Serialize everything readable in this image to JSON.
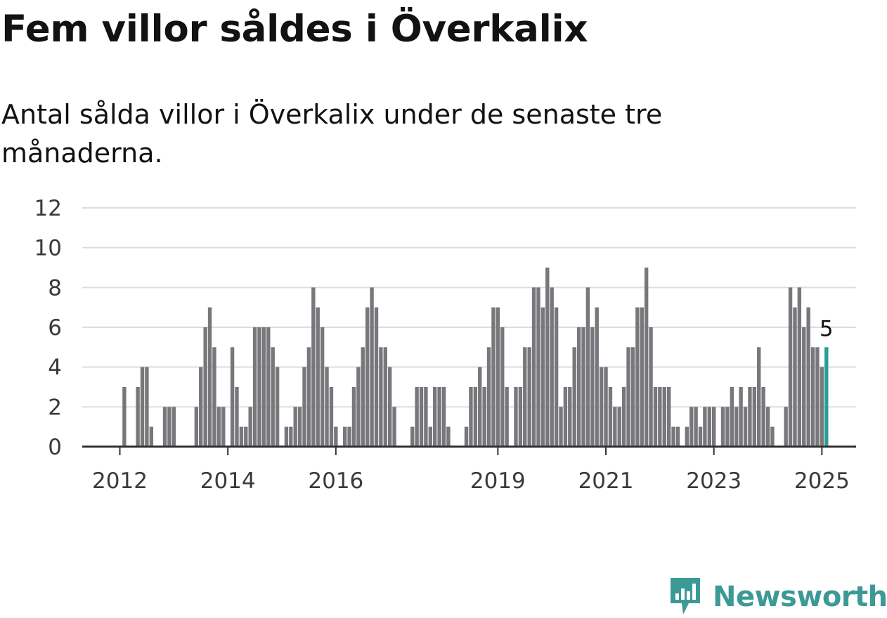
{
  "header": {
    "title": "Fem villor såldes i Överkalix",
    "subtitle": "Antal sålda villor i Överkalix under de senaste tre månaderna."
  },
  "chart_data": {
    "type": "bar",
    "title": "Fem villor såldes i Överkalix",
    "subtitle": "Antal sålda villor i Överkalix under de senaste tre månaderna.",
    "xlabel": "",
    "ylabel": "",
    "start": "2012-01",
    "ylim": [
      0,
      12
    ],
    "yticks": [
      0,
      2,
      4,
      6,
      8,
      10,
      12
    ],
    "xticks": [
      {
        "label": "2012",
        "month": "2012-01"
      },
      {
        "label": "2014",
        "month": "2014-01"
      },
      {
        "label": "2016",
        "month": "2016-01"
      },
      {
        "label": "2019",
        "month": "2019-01"
      },
      {
        "label": "2021",
        "month": "2021-01"
      },
      {
        "label": "2023",
        "month": "2023-01"
      },
      {
        "label": "2025",
        "month": "2025-01"
      }
    ],
    "grid": true,
    "bar_color": "#78787c",
    "highlight_color": "#2a9d96",
    "highlight_label": "5",
    "values": [
      0,
      3,
      0,
      0,
      3,
      4,
      4,
      1,
      0,
      0,
      2,
      2,
      2,
      0,
      0,
      0,
      0,
      2,
      4,
      6,
      7,
      5,
      2,
      2,
      0,
      5,
      3,
      1,
      1,
      2,
      6,
      6,
      6,
      6,
      5,
      4,
      0,
      1,
      1,
      2,
      2,
      4,
      5,
      8,
      7,
      6,
      4,
      3,
      1,
      0,
      1,
      1,
      3,
      4,
      5,
      7,
      8,
      7,
      5,
      5,
      4,
      2,
      0,
      0,
      0,
      1,
      3,
      3,
      3,
      1,
      3,
      3,
      3,
      1,
      0,
      0,
      0,
      1,
      3,
      3,
      4,
      3,
      5,
      7,
      7,
      6,
      3,
      0,
      3,
      3,
      5,
      5,
      8,
      8,
      7,
      9,
      8,
      7,
      2,
      3,
      3,
      5,
      6,
      6,
      8,
      6,
      7,
      4,
      4,
      3,
      2,
      2,
      3,
      5,
      5,
      7,
      7,
      9,
      6,
      3,
      3,
      3,
      3,
      1,
      1,
      0,
      1,
      2,
      2,
      1,
      2,
      2,
      2,
      0,
      2,
      2,
      3,
      2,
      3,
      2,
      3,
      3,
      5,
      3,
      2,
      1,
      0,
      0,
      2,
      8,
      7,
      8,
      6,
      7,
      5,
      5,
      4,
      5
    ]
  },
  "brand": {
    "name": "Newsworthy",
    "color": "#3b9a96"
  }
}
